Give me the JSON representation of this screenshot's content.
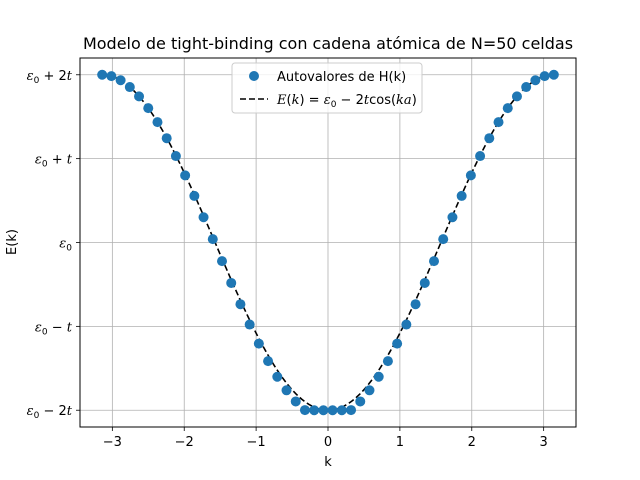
{
  "chart_data": {
    "type": "scatter",
    "title": "Modelo de tight-binding con cadena atómica de N=50 celdas",
    "xlabel": "k",
    "ylabel": "E(k)",
    "xlim": [
      -3.45,
      3.45
    ],
    "ylim": [
      -2.2,
      2.2
    ],
    "grid": true,
    "legend_position": "top-center",
    "x_ticks": [
      -3,
      -2,
      -1,
      0,
      1,
      2,
      3
    ],
    "x_tick_labels": [
      "−3",
      "−2",
      "−1",
      "0",
      "1",
      "2",
      "3"
    ],
    "y_ticks": [
      -2,
      -1,
      0,
      1,
      2
    ],
    "y_tick_labels": [
      "ε0 − 2t",
      "ε0 − t",
      "ε0",
      "ε0 + t",
      "ε0 + 2t"
    ],
    "series": [
      {
        "name": "Autovalores de H(k)",
        "kind": "scatter",
        "color": "#1f77b4",
        "N": 50,
        "x": [
          -3.1416,
          -3.0134,
          -2.8851,
          -2.7569,
          -2.6287,
          -2.5005,
          -2.3722,
          -2.244,
          -2.1158,
          -1.9875,
          -1.8593,
          -1.7311,
          -1.6029,
          -1.4746,
          -1.3464,
          -1.2182,
          -1.0899,
          -0.9617,
          -0.8335,
          -0.7053,
          -0.577,
          -0.4488,
          -0.3206,
          -0.1923,
          -0.0641,
          0.0641,
          0.1923,
          0.3206,
          0.4488,
          0.577,
          0.7053,
          0.8335,
          0.9617,
          1.0899,
          1.2182,
          1.3464,
          1.4746,
          1.6029,
          1.7311,
          1.8593,
          1.9875,
          2.1158,
          2.244,
          2.3722,
          2.5005,
          2.6287,
          2.7569,
          2.8851,
          3.0134,
          3.1416
        ],
        "y": [
          2.0,
          1.9836,
          1.9346,
          1.8539,
          1.7425,
          1.6022,
          1.4351,
          1.2436,
          1.0308,
          0.8002,
          0.5556,
          0.3008,
          0.0401,
          -0.222,
          -0.4822,
          -0.7356,
          -0.9781,
          -1.2056,
          -1.4144,
          -1.601,
          -1.7621,
          -1.8956,
          -1.9981,
          -2.0,
          -2.0,
          -2.0,
          -2.0,
          -1.9981,
          -1.8956,
          -1.7621,
          -1.601,
          -1.4144,
          -1.2056,
          -0.9781,
          -0.7356,
          -0.4822,
          -0.222,
          0.0401,
          0.3008,
          0.5556,
          0.8002,
          1.0308,
          1.2436,
          1.4351,
          1.6022,
          1.7425,
          1.8539,
          1.9346,
          1.9836,
          2.0
        ]
      },
      {
        "name": "E(k) = ε0 − 2t cos(ka)",
        "kind": "line",
        "color": "#000000",
        "dash": true,
        "formula": "-2cos(k)"
      }
    ]
  }
}
